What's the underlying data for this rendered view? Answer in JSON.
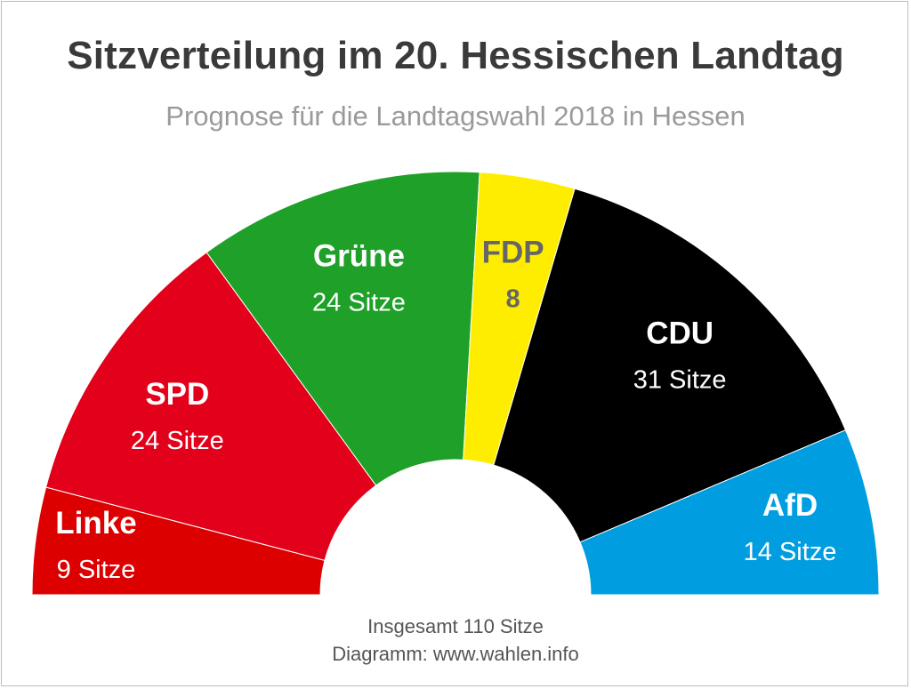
{
  "title": "Sitzverteilung im 20. Hessischen Landtag",
  "subtitle": "Prognose für die Landtagswahl 2018 in Hessen",
  "total_label": "Insgesamt 110 Sitze",
  "source_label": "Diagramm: www.wahlen.info",
  "chart_data": {
    "type": "pie",
    "subtype": "parliament-semicircle",
    "title": "Sitzverteilung im 20. Hessischen Landtag",
    "subtitle": "Prognose für die Landtagswahl 2018 in Hessen",
    "total": 110,
    "series": [
      {
        "name": "Linke",
        "value": 9,
        "label": "9 Sitze",
        "color": "#dd0000",
        "text_color": "#ffffff"
      },
      {
        "name": "SPD",
        "value": 24,
        "label": "24 Sitze",
        "color": "#e2001a",
        "text_color": "#ffffff"
      },
      {
        "name": "Grüne",
        "value": 24,
        "label": "24 Sitze",
        "color": "#1ea029",
        "text_color": "#ffffff"
      },
      {
        "name": "FDP",
        "value": 8,
        "label": "8",
        "color": "#ffed00",
        "text_color": "#666666"
      },
      {
        "name": "CDU",
        "value": 31,
        "label": "31 Sitze",
        "color": "#000000",
        "text_color": "#ffffff"
      },
      {
        "name": "AfD",
        "value": 14,
        "label": "14 Sitze",
        "color": "#009ee0",
        "text_color": "#ffffff"
      }
    ]
  }
}
